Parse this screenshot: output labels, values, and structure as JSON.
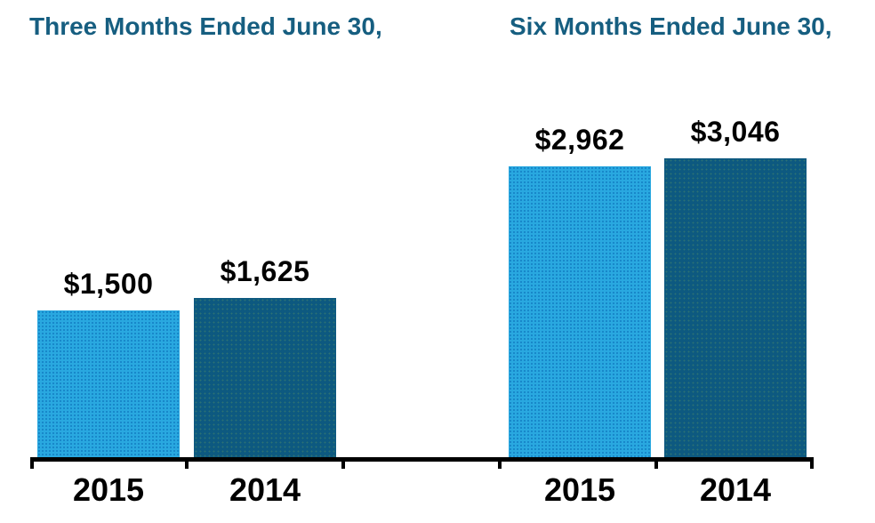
{
  "chart_data": {
    "type": "bar",
    "layout": "two grouped panels sharing one x-axis baseline, no y-axis, no gridlines, no legend",
    "ylim": [
      0,
      3046
    ],
    "groups": [
      {
        "title": "Three Months Ended June 30,",
        "bars": [
          {
            "category": "2015",
            "value": 1500,
            "label": "$1,500",
            "color": "light_blue"
          },
          {
            "category": "2014",
            "value": 1625,
            "label": "$1,625",
            "color": "dark_blue"
          }
        ]
      },
      {
        "title": "Six Months Ended June 30,",
        "bars": [
          {
            "category": "2015",
            "value": 2962,
            "label": "$2,962",
            "color": "light_blue"
          },
          {
            "category": "2014",
            "value": 3046,
            "label": "$3,046",
            "color": "dark_blue"
          }
        ]
      }
    ]
  },
  "colors": {
    "light_blue": "#29A8E0",
    "dark_blue": "#0D5980",
    "title_text": "#165E80",
    "value_text": "#000000",
    "axis": "#000000"
  }
}
